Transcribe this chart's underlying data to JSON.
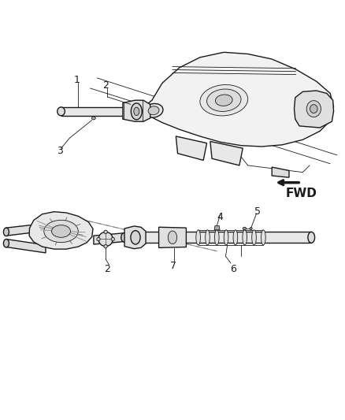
{
  "background_color": "#ffffff",
  "line_color": "#1a1a1a",
  "fwd_label": "FWD",
  "fwd_label_fontsize": 11,
  "label_fontsize": 9,
  "fig_width": 4.38,
  "fig_height": 5.33,
  "dpi": 100
}
